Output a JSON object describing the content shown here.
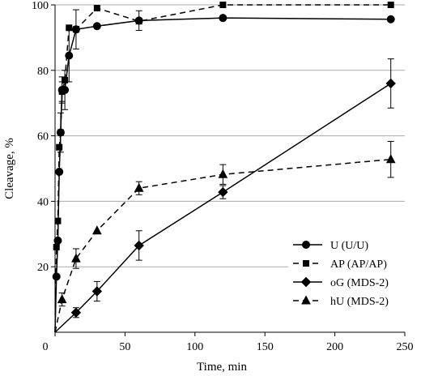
{
  "chart_data": {
    "type": "line",
    "xlabel": "Time, min",
    "ylabel": "Cleavage, %",
    "xlim": [
      0,
      250
    ],
    "ylim": [
      0,
      100
    ],
    "xticks": [
      0,
      50,
      100,
      150,
      200,
      250
    ],
    "yticks": [
      20,
      40,
      60,
      80,
      100
    ],
    "grid": "horizontal",
    "legend_position": "bottom-right",
    "series": [
      {
        "name": "U (U/U)",
        "marker": "circle",
        "dash": "solid",
        "x": [
          0,
          1,
          2,
          3,
          4,
          5,
          7,
          10,
          15,
          30,
          60,
          120,
          240
        ],
        "y": [
          0,
          17,
          28,
          49,
          61,
          74,
          74,
          84.5,
          92.5,
          93.5,
          95.2,
          96.0,
          95.6
        ],
        "err": [
          0,
          0,
          0,
          0,
          6,
          4,
          6,
          8,
          6,
          0,
          3,
          0,
          0
        ]
      },
      {
        "name": "AP (AP/AP)",
        "marker": "square",
        "dash": "dashed",
        "x": [
          0,
          1,
          2,
          3,
          4,
          5,
          7,
          10,
          15,
          30,
          60,
          120,
          240
        ],
        "y": [
          0,
          26,
          34,
          56.5,
          61,
          73.5,
          77,
          93,
          92.5,
          99,
          95.0,
          100,
          100
        ],
        "err": [
          0,
          0,
          0,
          0,
          0,
          3,
          0,
          0,
          0,
          0,
          0,
          0,
          0
        ]
      },
      {
        "name": "oG (MDS-2)",
        "marker": "diamond",
        "dash": "solid",
        "x": [
          0,
          15,
          30,
          60,
          120,
          240
        ],
        "y": [
          0,
          6,
          12.5,
          26.5,
          42.8,
          76
        ],
        "err": [
          0,
          1.5,
          3,
          4.5,
          2,
          7.5
        ]
      },
      {
        "name": "hU (MDS-2)",
        "marker": "triangle",
        "dash": "dashed",
        "x": [
          0,
          5,
          15,
          30,
          60,
          120,
          240
        ],
        "y": [
          0,
          10,
          22.5,
          31,
          44,
          48.2,
          52.8
        ],
        "err": [
          0,
          2,
          3,
          0,
          2,
          3,
          5.5
        ]
      }
    ]
  }
}
